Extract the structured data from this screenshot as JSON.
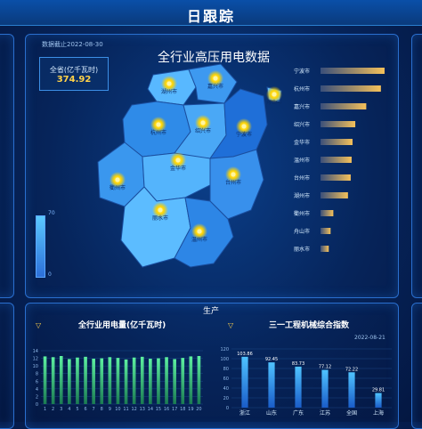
{
  "header": {
    "title": "日跟踪"
  },
  "map_panel": {
    "date_note": "数据截止2022-08-30",
    "title": "全行业高压用电数据",
    "total_label": "全省(亿千瓦时)",
    "total_value": "374.92",
    "legend_max": "70",
    "legend_min": "0",
    "cities": [
      "湖州市",
      "嘉兴市",
      "杭州市",
      "绍兴市",
      "宁波市",
      "舟山市",
      "衢州市",
      "金华市",
      "台州市",
      "丽水市",
      "温州市"
    ]
  },
  "bottom": {
    "section_label": "生产",
    "chart1_title": "全行业用电量(亿千瓦时)",
    "chart2_title": "三一工程机械综合指数",
    "chart2_date": "2022-08-21"
  },
  "colors": {
    "accent": "#ffd24a",
    "bar_gold": "#f5c15a",
    "bar_green": "#3fd08a",
    "bar_blue": "#2ea2ff"
  },
  "chart_data": [
    {
      "type": "bar",
      "orientation": "horizontal",
      "categories": [
        "宁波市",
        "杭州市",
        "嘉兴市",
        "绍兴市",
        "金华市",
        "温州市",
        "台州市",
        "湖州市",
        "衢州市",
        "舟山市",
        "丽水市"
      ],
      "values": [
        70,
        66,
        50,
        38,
        35,
        34,
        33,
        30,
        14,
        11,
        9
      ]
    },
    {
      "type": "bar",
      "title": "全行业用电量(亿千瓦时)",
      "categories": [
        "1",
        "2",
        "3",
        "4",
        "5",
        "6",
        "7",
        "8",
        "9",
        "10",
        "11",
        "12",
        "13",
        "14",
        "15",
        "16",
        "17",
        "18",
        "19",
        "20"
      ],
      "values": [
        12.5,
        12.3,
        12.6,
        11.8,
        12.2,
        12.4,
        11.9,
        12.0,
        12.3,
        12.1,
        11.7,
        12.2,
        12.4,
        11.9,
        12.0,
        12.3,
        11.8,
        12.1,
        12.5,
        12.6
      ],
      "ylim": [
        0,
        14
      ],
      "yticks": [
        "0",
        "2",
        "4",
        "6",
        "8",
        "10",
        "12",
        "14"
      ]
    },
    {
      "type": "bar",
      "title": "三一工程机械综合指数",
      "categories": [
        "浙江",
        "山东",
        "广东",
        "江苏",
        "全国",
        "上海"
      ],
      "values": [
        103.86,
        92.45,
        83.73,
        77.12,
        72.22,
        29.81
      ],
      "value_labels": [
        "103.86",
        "92.45",
        "83.73",
        "77.12",
        "72.22",
        "29.81"
      ],
      "ylim": [
        0,
        120
      ],
      "yticks": [
        "0",
        "20",
        "40",
        "60",
        "80",
        "100",
        "120"
      ]
    }
  ]
}
